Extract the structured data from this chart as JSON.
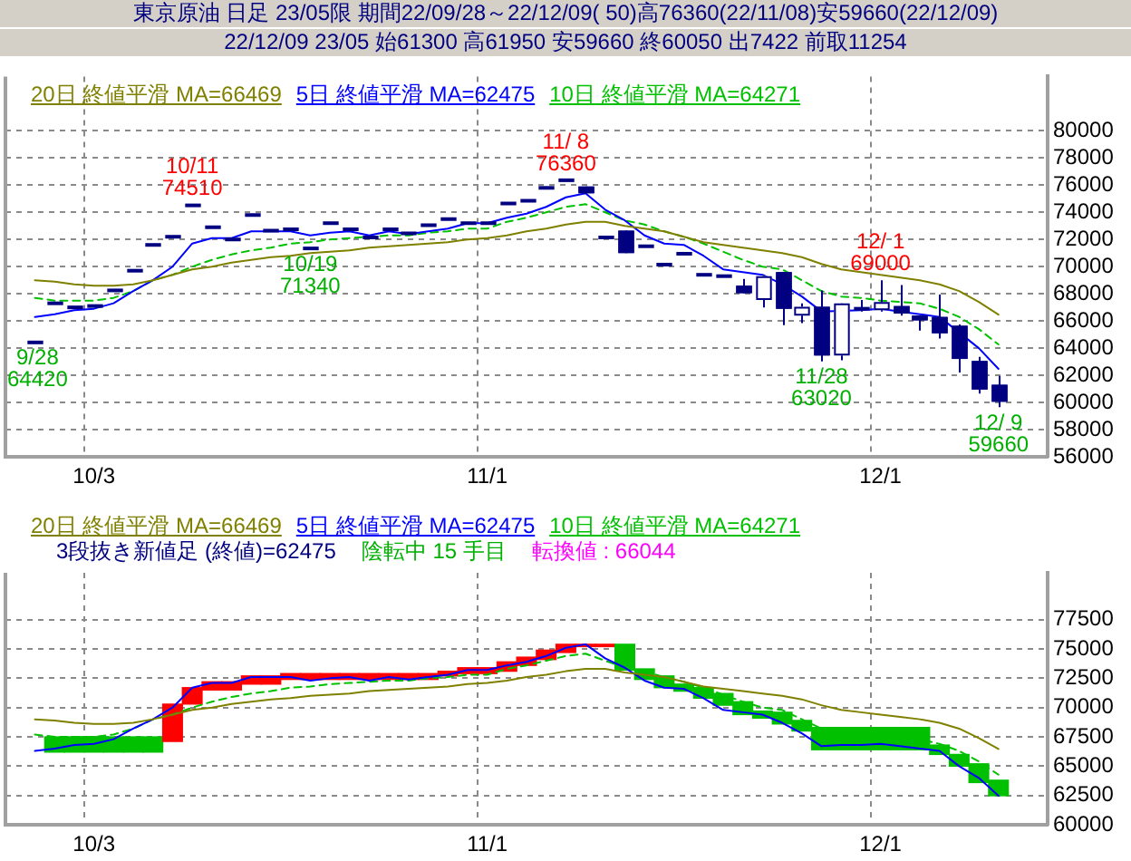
{
  "chart_data": [
    {
      "type": "candlestick",
      "title": "東京原油 日足 23/05限 期間22/09/28～22/12/09( 50)高76360(22/11/08)安59660(22/12/09)",
      "subtitle": "22/12/09 23/05 始61300 高61950 安59660 終60050 出7422 前取11254",
      "categories": [
        null,
        null,
        null,
        "10/3",
        null,
        null,
        null,
        null,
        null,
        null,
        null,
        null,
        null,
        null,
        null,
        null,
        null,
        null,
        null,
        null,
        null,
        null,
        null,
        "11/1",
        null,
        null,
        null,
        null,
        null,
        null,
        null,
        null,
        null,
        null,
        null,
        null,
        null,
        null,
        null,
        null,
        null,
        null,
        null,
        "12/1",
        null,
        null,
        null,
        null,
        null,
        null
      ],
      "color": "#000080",
      "colors": [
        "#000080",
        "#000080",
        "#000080",
        "#000080",
        "#000080",
        "#000080",
        "#000080",
        "#000080",
        "#000080",
        "#000080",
        "#000080",
        "#000080",
        "#000080",
        "#000080",
        "#000080",
        "#000080",
        "#000080",
        "#000080",
        "#000080",
        "#000080",
        "#000080",
        "#000080",
        "#000080",
        "#000080",
        "#000080",
        "#000080",
        "#000080",
        "#000080",
        "#000080",
        "#000080",
        "#000080",
        "#000080",
        "#000080",
        "#000080",
        "#000080",
        "#000080",
        "#000080",
        "#ffffff",
        "#000080",
        "#ffffff",
        "#000080",
        "#ffffff",
        "#000080",
        "#ffffff",
        "#000080",
        "#000080",
        "#000080",
        "#000080",
        "#000080",
        "#000080"
      ],
      "ohlc": [
        [
          64420,
          64420,
          64420,
          64420
        ],
        [
          67300,
          67300,
          67300,
          67300
        ],
        [
          67000,
          67000,
          67000,
          67000
        ],
        [
          67100,
          67100,
          67100,
          67100
        ],
        [
          68250,
          68250,
          68250,
          68250
        ],
        [
          69700,
          69700,
          69700,
          69700
        ],
        [
          71600,
          71600,
          71600,
          71600
        ],
        [
          72200,
          72200,
          72200,
          72200
        ],
        [
          74510,
          74510,
          74510,
          74510
        ],
        [
          72900,
          72900,
          72900,
          72900
        ],
        [
          72000,
          72000,
          72000,
          72000
        ],
        [
          73800,
          73800,
          73800,
          73800
        ],
        [
          72650,
          72650,
          72650,
          72650
        ],
        [
          72750,
          72750,
          72750,
          72750
        ],
        [
          71340,
          71340,
          71340,
          71340
        ],
        [
          73200,
          73200,
          73200,
          73200
        ],
        [
          72750,
          72750,
          72750,
          72750
        ],
        [
          72150,
          72150,
          72150,
          72150
        ],
        [
          72750,
          72750,
          72750,
          72750
        ],
        [
          72450,
          72450,
          72450,
          72450
        ],
        [
          73050,
          73050,
          73050,
          73050
        ],
        [
          73500,
          73500,
          73500,
          73500
        ],
        [
          73200,
          73200,
          73200,
          73200
        ],
        [
          73200,
          73200,
          73200,
          73200
        ],
        [
          74650,
          74650,
          74650,
          74650
        ],
        [
          74850,
          74850,
          74850,
          74850
        ],
        [
          75800,
          75800,
          75800,
          75800
        ],
        [
          76360,
          76360,
          76360,
          76360
        ],
        [
          75900,
          75900,
          75400,
          75400
        ],
        [
          72150,
          72150,
          72150,
          72150
        ],
        [
          72650,
          72650,
          71000,
          71000
        ],
        [
          71500,
          71500,
          71500,
          71500
        ],
        [
          70150,
          70150,
          70150,
          70150
        ],
        [
          70950,
          70950,
          70950,
          70950
        ],
        [
          69400,
          69400,
          69400,
          69400
        ],
        [
          69300,
          69300,
          69300,
          69300
        ],
        [
          68600,
          69100,
          68050,
          68050
        ],
        [
          67550,
          69400,
          67000,
          69300
        ],
        [
          69600,
          69600,
          65700,
          66900
        ],
        [
          66400,
          67300,
          65850,
          67050
        ],
        [
          67050,
          68250,
          63020,
          63450
        ],
        [
          63450,
          67300,
          63100,
          67300
        ],
        [
          66900,
          67550,
          66700,
          66900
        ],
        [
          66800,
          69000,
          66700,
          67400
        ],
        [
          67100,
          68650,
          66400,
          66550
        ],
        [
          66400,
          66400,
          65300,
          66050
        ],
        [
          66300,
          67950,
          64700,
          65100
        ],
        [
          65650,
          65750,
          62200,
          63200
        ],
        [
          63050,
          63350,
          60650,
          60950
        ],
        [
          61300,
          61950,
          59660,
          60050
        ]
      ],
      "series": [
        {
          "name": "20日 終値平滑 MA=66469",
          "type": "line",
          "color": "#808000",
          "values": [
            69000,
            68900,
            68700,
            68600,
            68600,
            68700,
            69000,
            69400,
            69800,
            70000,
            70300,
            70500,
            70700,
            70800,
            71000,
            71100,
            71200,
            71400,
            71500,
            71600,
            71700,
            71800,
            72000,
            72100,
            72300,
            72600,
            72800,
            73100,
            73300,
            73300,
            73000,
            72800,
            72600,
            72200,
            71800,
            71600,
            71400,
            71200,
            71000,
            70700,
            70200,
            69800,
            69600,
            69400,
            69200,
            69000,
            68700,
            68200,
            67400,
            66469
          ]
        },
        {
          "name": "5日 終値平滑 MA=62475",
          "type": "line",
          "color": "#0000ff",
          "values": [
            66300,
            66500,
            66800,
            66900,
            67300,
            68200,
            69000,
            70000,
            71700,
            72100,
            72100,
            72600,
            72600,
            72600,
            72300,
            72500,
            72600,
            72300,
            72600,
            72400,
            72600,
            72800,
            73200,
            73200,
            73600,
            73900,
            74400,
            75100,
            75400,
            74200,
            73400,
            72300,
            71700,
            71600,
            70800,
            69800,
            69600,
            69400,
            68700,
            67800,
            66700,
            null,
            66800,
            66900,
            66700,
            66500,
            66300,
            null,
            64000,
            62475
          ]
        },
        {
          "name": "10日 終値平滑 MA=64271",
          "type": "line",
          "color": "#00c000",
          "line_style": "dashed",
          "values": [
            67700,
            67500,
            67500,
            67500,
            67700,
            68200,
            69000,
            69400,
            70000,
            70500,
            70900,
            71200,
            71400,
            71700,
            71800,
            72000,
            72100,
            72200,
            72300,
            72300,
            72500,
            72600,
            72800,
            72800,
            73300,
            73600,
            74000,
            74400,
            74600,
            74000,
            73400,
            73100,
            72600,
            72200,
            71700,
            71100,
            70500,
            70000,
            69800,
            69000,
            68200,
            67800,
            67700,
            67500,
            67400,
            67300,
            66900,
            66300,
            65400,
            64271
          ]
        }
      ],
      "ylim": [
        56000,
        84000
      ],
      "yticks": [
        56000,
        58000,
        60000,
        62000,
        64000,
        66000,
        68000,
        70000,
        72000,
        74000,
        76000,
        78000,
        80000
      ],
      "grid": true,
      "legend": "top left",
      "annotations": [
        {
          "text": "9/28\n64420",
          "y": 64420
        },
        {
          "text": "10/11\n74510",
          "y": 74510
        },
        {
          "text": "10/19\n71340",
          "y": 71340
        },
        {
          "text": "11/ 8\n76360",
          "y": 76360
        },
        {
          "text": "11/28\n63020",
          "y": 63020
        },
        {
          "text": "12/ 1\n69000",
          "y": 69000
        },
        {
          "text": "12/ 9\n59660",
          "y": 59660
        }
      ]
    },
    {
      "type": "bar",
      "categories": [
        null,
        null,
        null,
        "10/3",
        null,
        null,
        null,
        null,
        null,
        null,
        null,
        null,
        null,
        null,
        null,
        null,
        null,
        null,
        null,
        null,
        null,
        null,
        null,
        "11/1",
        null,
        null,
        null,
        null,
        null,
        null,
        null,
        null,
        null,
        null,
        null,
        null,
        null,
        null,
        null,
        null,
        null,
        null,
        null,
        "12/1",
        null,
        null,
        null,
        null,
        null,
        null
      ],
      "series": [
        {
          "type": "bar",
          "base": [
            null,
            66200,
            66200,
            66200,
            66200,
            66200,
            66200,
            67100,
            70300,
            71500,
            71500,
            72000,
            72000,
            72400,
            72400,
            72400,
            72400,
            72400,
            72400,
            72400,
            72400,
            72700,
            72900,
            72900,
            73100,
            73600,
            74100,
            74700,
            75200,
            75200,
            73200,
            72400,
            71700,
            71400,
            70800,
            70200,
            69400,
            69100,
            68600,
            68000,
            66400,
            66400,
            66400,
            66400,
            66400,
            66400,
            66000,
            65000,
            63600,
            62475
          ],
          "values": [
            null,
            1300,
            1300,
            1300,
            1300,
            1300,
            1300,
            3200,
            1400,
            700,
            700,
            700,
            700,
            500,
            500,
            500,
            500,
            500,
            500,
            500,
            500,
            400,
            500,
            500,
            800,
            700,
            800,
            700,
            200,
            200,
            2200,
            900,
            1000,
            600,
            900,
            1000,
            1100,
            600,
            1000,
            900,
            1900,
            1900,
            1900,
            1900,
            1900,
            1900,
            800,
            1000,
            1600,
            1325
          ],
          "colors": [
            null,
            "#00c000",
            "#00c000",
            "#00c000",
            "#00c000",
            "#00c000",
            "#00c000",
            "#ff0000",
            "#ff0000",
            "#ff0000",
            "#ff0000",
            "#ff0000",
            "#ff0000",
            "#ff0000",
            "#ff0000",
            "#ff0000",
            "#ff0000",
            "#ff0000",
            "#ff0000",
            "#ff0000",
            "#ff0000",
            "#ff0000",
            "#ff0000",
            "#ff0000",
            "#ff0000",
            "#ff0000",
            "#ff0000",
            "#ff0000",
            "#ff0000",
            "#ff0000",
            "#00c000",
            "#00c000",
            "#00c000",
            "#00c000",
            "#00c000",
            "#00c000",
            "#00c000",
            "#00c000",
            "#00c000",
            "#00c000",
            "#00c000",
            "#00c000",
            "#00c000",
            "#00c000",
            "#00c000",
            "#00c000",
            "#00c000",
            "#00c000",
            "#00c000",
            "#00c000"
          ]
        },
        {
          "name": "20日 終値平滑 MA=66469",
          "type": "line",
          "color": "#808000",
          "values": [
            69000,
            68900,
            68700,
            68600,
            68600,
            68700,
            69000,
            69400,
            69800,
            70000,
            70300,
            70500,
            70700,
            70800,
            71000,
            71100,
            71200,
            71400,
            71500,
            71600,
            71700,
            71800,
            72000,
            72100,
            72300,
            72600,
            72800,
            73100,
            73300,
            73300,
            73000,
            72800,
            72600,
            72200,
            71800,
            71600,
            71400,
            71200,
            71000,
            70700,
            70200,
            69800,
            69600,
            69400,
            69200,
            69000,
            68700,
            68200,
            67400,
            66469
          ]
        },
        {
          "name": "5日 終値平滑 MA=62475",
          "type": "line",
          "color": "#0000ff",
          "values": [
            66300,
            66500,
            66800,
            66900,
            67300,
            68200,
            69000,
            70000,
            71700,
            72100,
            72100,
            72600,
            72600,
            72600,
            72300,
            72500,
            72600,
            72300,
            72600,
            72400,
            72600,
            72800,
            73200,
            73200,
            73600,
            73900,
            74400,
            75100,
            75400,
            74200,
            73400,
            72300,
            71700,
            71600,
            70800,
            69800,
            69600,
            69400,
            68700,
            67800,
            66700,
            66800,
            66800,
            66900,
            66700,
            66500,
            66300,
            65000,
            64000,
            62475
          ]
        },
        {
          "name": "10日 終値平滑 MA=64271",
          "type": "line",
          "color": "#00c000",
          "line_style": "dashed",
          "values": [
            67700,
            67500,
            67500,
            67500,
            67700,
            68200,
            69000,
            69400,
            70000,
            70500,
            70900,
            71200,
            71400,
            71700,
            71800,
            72000,
            72100,
            72200,
            72300,
            72300,
            72500,
            72600,
            72800,
            72800,
            73300,
            73600,
            74000,
            74400,
            74600,
            74000,
            73400,
            73100,
            72600,
            72200,
            71700,
            71100,
            70500,
            70000,
            69800,
            69000,
            68200,
            67800,
            67700,
            67500,
            67400,
            67300,
            66900,
            66300,
            65400,
            64271
          ]
        }
      ],
      "ylim": [
        60000,
        81500
      ],
      "yticks": [
        60000,
        62500,
        65000,
        67500,
        70000,
        72500,
        75000,
        77500
      ],
      "grid": true,
      "legend": "top left",
      "annotations": [
        "3段抜き新値足 (終値)=62475",
        "陰転中 15 手目",
        "転換値 : 66044"
      ]
    }
  ]
}
